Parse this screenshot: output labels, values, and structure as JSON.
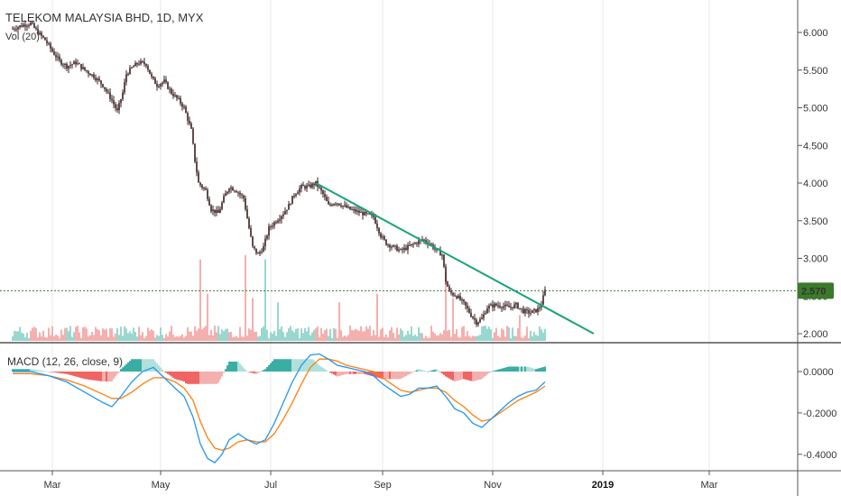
{
  "header": {
    "title": "TELEKOM MALAYSIA BHD, 1D, MYX",
    "volume_label": "Vol (20)"
  },
  "macd_label": "MACD (12, 26, close, 9)",
  "price_badge": "2.570",
  "colors": {
    "up": "#26a69a",
    "down": "#ef5350",
    "candle": "#3a1f1f",
    "macd_line": "#2196f3",
    "signal_line": "#ff7f0e",
    "trendline": "#1aa37a",
    "badge_bg": "#3a7a2a",
    "grid": "#e8e8e8"
  },
  "chart_data": [
    {
      "type": "candlestick",
      "title": "TELEKOM MALAYSIA BHD, 1D, MYX",
      "y_ticks": [
        "6.000",
        "5.500",
        "5.000",
        "4.500",
        "4.000",
        "3.500",
        "3.000",
        "2.500",
        "2.000"
      ],
      "ylim": [
        1.9,
        6.4
      ],
      "x_ticks": [
        {
          "label": "Mar",
          "day": 22,
          "bold": false
        },
        {
          "label": "May",
          "day": 82,
          "bold": false
        },
        {
          "label": "Jul",
          "day": 143,
          "bold": false
        },
        {
          "label": "Sep",
          "day": 205,
          "bold": false
        },
        {
          "label": "Nov",
          "day": 266,
          "bold": false
        },
        {
          "label": "2019",
          "day": 327,
          "bold": true
        },
        {
          "label": "Mar",
          "day": 386,
          "bold": false
        }
      ],
      "close_path": [
        [
          0,
          6.05
        ],
        [
          6,
          6.1
        ],
        [
          10,
          6.12
        ],
        [
          14,
          6.0
        ],
        [
          18,
          5.9
        ],
        [
          22,
          5.75
        ],
        [
          26,
          5.62
        ],
        [
          30,
          5.55
        ],
        [
          35,
          5.6
        ],
        [
          40,
          5.5
        ],
        [
          45,
          5.42
        ],
        [
          50,
          5.3
        ],
        [
          55,
          5.1
        ],
        [
          58,
          4.95
        ],
        [
          61,
          5.2
        ],
        [
          63,
          5.45
        ],
        [
          67,
          5.55
        ],
        [
          70,
          5.6
        ],
        [
          74,
          5.58
        ],
        [
          77,
          5.4
        ],
        [
          80,
          5.3
        ],
        [
          84,
          5.35
        ],
        [
          88,
          5.2
        ],
        [
          92,
          5.1
        ],
        [
          95,
          5.0
        ],
        [
          99,
          4.7
        ],
        [
          101,
          4.3
        ],
        [
          103,
          4.0
        ],
        [
          107,
          3.9
        ],
        [
          110,
          3.65
        ],
        [
          114,
          3.6
        ],
        [
          117,
          3.8
        ],
        [
          120,
          3.95
        ],
        [
          124,
          3.9
        ],
        [
          128,
          3.8
        ],
        [
          131,
          3.4
        ],
        [
          133,
          3.15
        ],
        [
          136,
          3.05
        ],
        [
          139,
          3.15
        ],
        [
          142,
          3.4
        ],
        [
          146,
          3.5
        ],
        [
          150,
          3.6
        ],
        [
          153,
          3.7
        ],
        [
          156,
          3.85
        ],
        [
          160,
          3.95
        ],
        [
          164,
          3.95
        ],
        [
          168,
          4.0
        ],
        [
          172,
          3.85
        ],
        [
          175,
          3.7
        ],
        [
          179,
          3.75
        ],
        [
          183,
          3.7
        ],
        [
          187,
          3.65
        ],
        [
          191,
          3.62
        ],
        [
          196,
          3.58
        ],
        [
          200,
          3.55
        ],
        [
          204,
          3.3
        ],
        [
          207,
          3.2
        ],
        [
          211,
          3.15
        ],
        [
          215,
          3.1
        ],
        [
          219,
          3.15
        ],
        [
          223,
          3.2
        ],
        [
          227,
          3.25
        ],
        [
          231,
          3.2
        ],
        [
          235,
          3.1
        ],
        [
          238,
          3.05
        ],
        [
          240,
          2.7
        ],
        [
          242,
          2.55
        ],
        [
          246,
          2.5
        ],
        [
          250,
          2.4
        ],
        [
          254,
          2.25
        ],
        [
          257,
          2.15
        ],
        [
          260,
          2.2
        ],
        [
          263,
          2.35
        ],
        [
          267,
          2.38
        ],
        [
          271,
          2.37
        ],
        [
          275,
          2.35
        ],
        [
          279,
          2.38
        ],
        [
          283,
          2.3
        ],
        [
          287,
          2.28
        ],
        [
          291,
          2.32
        ],
        [
          293,
          2.4
        ],
        [
          295,
          2.57
        ]
      ],
      "trendline": [
        [
          168,
          4.0
        ],
        [
          322,
          2.0
        ]
      ],
      "last_price": 2.57
    },
    {
      "type": "bar",
      "name": "Vol (20)",
      "spikes": [
        [
          104,
          0.95
        ],
        [
          108,
          0.55
        ],
        [
          129,
          1.0
        ],
        [
          133,
          0.5
        ],
        [
          140,
          0.95
        ],
        [
          147,
          0.45
        ],
        [
          181,
          0.45
        ],
        [
          202,
          0.55
        ],
        [
          240,
          0.8
        ],
        [
          244,
          0.5
        ],
        [
          281,
          0.3
        ]
      ]
    },
    {
      "type": "line",
      "title": "MACD (12, 26, close, 9)",
      "y_ticks": [
        "0.0000",
        "-0.2000",
        "-0.4000"
      ],
      "ylim": [
        -0.45,
        0.1
      ],
      "macd": [
        [
          0,
          0.0
        ],
        [
          10,
          0.0
        ],
        [
          20,
          -0.02
        ],
        [
          30,
          -0.05
        ],
        [
          40,
          -0.1
        ],
        [
          50,
          -0.15
        ],
        [
          55,
          -0.17
        ],
        [
          60,
          -0.12
        ],
        [
          66,
          -0.05
        ],
        [
          72,
          0.0
        ],
        [
          78,
          0.02
        ],
        [
          84,
          -0.03
        ],
        [
          90,
          -0.08
        ],
        [
          95,
          -0.12
        ],
        [
          100,
          -0.22
        ],
        [
          104,
          -0.35
        ],
        [
          108,
          -0.42
        ],
        [
          112,
          -0.44
        ],
        [
          116,
          -0.4
        ],
        [
          120,
          -0.33
        ],
        [
          125,
          -0.3
        ],
        [
          130,
          -0.33
        ],
        [
          135,
          -0.35
        ],
        [
          140,
          -0.33
        ],
        [
          145,
          -0.25
        ],
        [
          150,
          -0.15
        ],
        [
          155,
          -0.05
        ],
        [
          160,
          0.03
        ],
        [
          165,
          0.08
        ],
        [
          170,
          0.085
        ],
        [
          175,
          0.06
        ],
        [
          180,
          0.03
        ],
        [
          185,
          0.02
        ],
        [
          190,
          0.01
        ],
        [
          195,
          0.0
        ],
        [
          200,
          -0.02
        ],
        [
          205,
          -0.06
        ],
        [
          210,
          -0.09
        ],
        [
          215,
          -0.12
        ],
        [
          220,
          -0.11
        ],
        [
          225,
          -0.08
        ],
        [
          230,
          -0.08
        ],
        [
          235,
          -0.07
        ],
        [
          240,
          -0.12
        ],
        [
          245,
          -0.18
        ],
        [
          250,
          -0.2
        ],
        [
          255,
          -0.25
        ],
        [
          260,
          -0.27
        ],
        [
          265,
          -0.23
        ],
        [
          270,
          -0.19
        ],
        [
          275,
          -0.15
        ],
        [
          280,
          -0.12
        ],
        [
          285,
          -0.1
        ],
        [
          290,
          -0.09
        ],
        [
          295,
          -0.05
        ]
      ],
      "signal": [
        [
          0,
          -0.01
        ],
        [
          10,
          -0.01
        ],
        [
          20,
          -0.02
        ],
        [
          30,
          -0.04
        ],
        [
          40,
          -0.07
        ],
        [
          50,
          -0.11
        ],
        [
          55,
          -0.13
        ],
        [
          60,
          -0.13
        ],
        [
          66,
          -0.1
        ],
        [
          72,
          -0.06
        ],
        [
          78,
          -0.03
        ],
        [
          84,
          -0.03
        ],
        [
          90,
          -0.05
        ],
        [
          95,
          -0.08
        ],
        [
          100,
          -0.14
        ],
        [
          104,
          -0.24
        ],
        [
          108,
          -0.32
        ],
        [
          112,
          -0.37
        ],
        [
          116,
          -0.38
        ],
        [
          120,
          -0.37
        ],
        [
          125,
          -0.34
        ],
        [
          130,
          -0.33
        ],
        [
          135,
          -0.34
        ],
        [
          140,
          -0.34
        ],
        [
          145,
          -0.3
        ],
        [
          150,
          -0.23
        ],
        [
          155,
          -0.15
        ],
        [
          160,
          -0.06
        ],
        [
          165,
          0.02
        ],
        [
          170,
          0.06
        ],
        [
          175,
          0.06
        ],
        [
          180,
          0.05
        ],
        [
          185,
          0.03
        ],
        [
          190,
          0.02
        ],
        [
          195,
          0.01
        ],
        [
          200,
          0.0
        ],
        [
          205,
          -0.03
        ],
        [
          210,
          -0.06
        ],
        [
          215,
          -0.09
        ],
        [
          220,
          -0.1
        ],
        [
          225,
          -0.09
        ],
        [
          230,
          -0.08
        ],
        [
          235,
          -0.08
        ],
        [
          240,
          -0.1
        ],
        [
          245,
          -0.14
        ],
        [
          250,
          -0.17
        ],
        [
          255,
          -0.21
        ],
        [
          260,
          -0.24
        ],
        [
          265,
          -0.23
        ],
        [
          270,
          -0.2
        ],
        [
          275,
          -0.17
        ],
        [
          280,
          -0.14
        ],
        [
          285,
          -0.12
        ],
        [
          290,
          -0.1
        ],
        [
          295,
          -0.07
        ]
      ]
    }
  ]
}
